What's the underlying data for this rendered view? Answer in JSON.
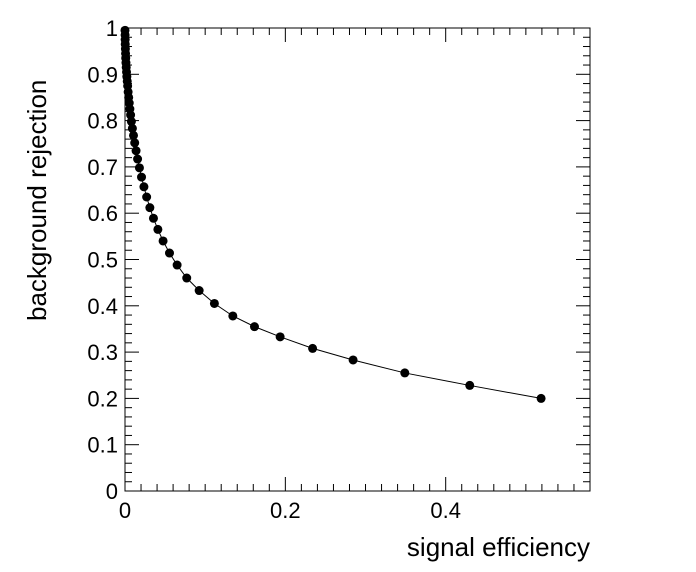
{
  "chart_data": {
    "type": "line",
    "xlabel": "signal efficiency",
    "ylabel": "background rejection",
    "xlim": [
      0,
      0.58
    ],
    "ylim": [
      0,
      1
    ],
    "x_ticks": [
      "0",
      "0.2",
      "0.4"
    ],
    "x_tick_values": [
      0,
      0.2,
      0.4
    ],
    "y_ticks": [
      "0",
      "0.1",
      "0.2",
      "0.3",
      "0.4",
      "0.5",
      "0.6",
      "0.7",
      "0.8",
      "0.9",
      "1"
    ],
    "y_tick_values": [
      0,
      0.1,
      0.2,
      0.3,
      0.4,
      0.5,
      0.6,
      0.7,
      0.8,
      0.9,
      1
    ],
    "grid": false,
    "marker": "filled-circle",
    "line_color": "#000000",
    "marker_color": "#000000",
    "series": [
      {
        "x": [
          0.0,
          0.0001,
          0.0002,
          0.0003,
          0.0005,
          0.0007,
          0.0009,
          0.0012,
          0.0015,
          0.0019,
          0.0023,
          0.0028,
          0.0033,
          0.0039,
          0.0046,
          0.0053,
          0.0061,
          0.007,
          0.008,
          0.0092,
          0.0106,
          0.0121,
          0.0138,
          0.0157,
          0.018,
          0.0206,
          0.0236,
          0.027,
          0.031,
          0.0355,
          0.041,
          0.0475,
          0.0555,
          0.065,
          0.077,
          0.0925,
          0.1115,
          0.1345,
          0.1615,
          0.1935,
          0.234,
          0.2845,
          0.349,
          0.43,
          0.519
        ],
        "y": [
          0.995,
          0.985,
          0.975,
          0.965,
          0.955,
          0.945,
          0.935,
          0.925,
          0.915,
          0.905,
          0.895,
          0.885,
          0.875,
          0.862,
          0.85,
          0.838,
          0.825,
          0.812,
          0.798,
          0.783,
          0.768,
          0.752,
          0.735,
          0.717,
          0.698,
          0.678,
          0.657,
          0.635,
          0.612,
          0.589,
          0.565,
          0.54,
          0.514,
          0.488,
          0.46,
          0.433,
          0.405,
          0.378,
          0.355,
          0.333,
          0.308,
          0.283,
          0.255,
          0.228,
          0.2
        ]
      }
    ]
  }
}
